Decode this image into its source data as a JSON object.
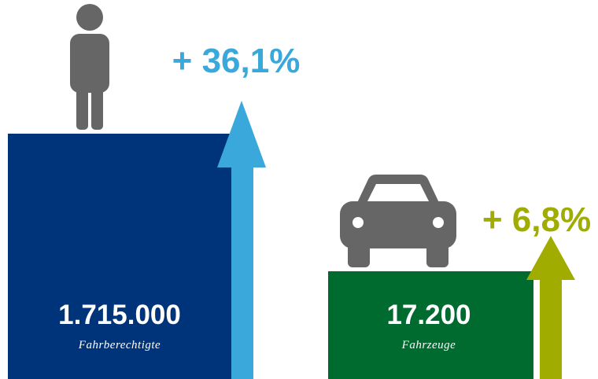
{
  "items": [
    {
      "value": "1.715.000",
      "label": "Fahrberechtigte",
      "change": "+ 36,1%"
    },
    {
      "value": "17.200",
      "label": "Fahrzeuge",
      "change": "+ 6,8%"
    }
  ]
}
